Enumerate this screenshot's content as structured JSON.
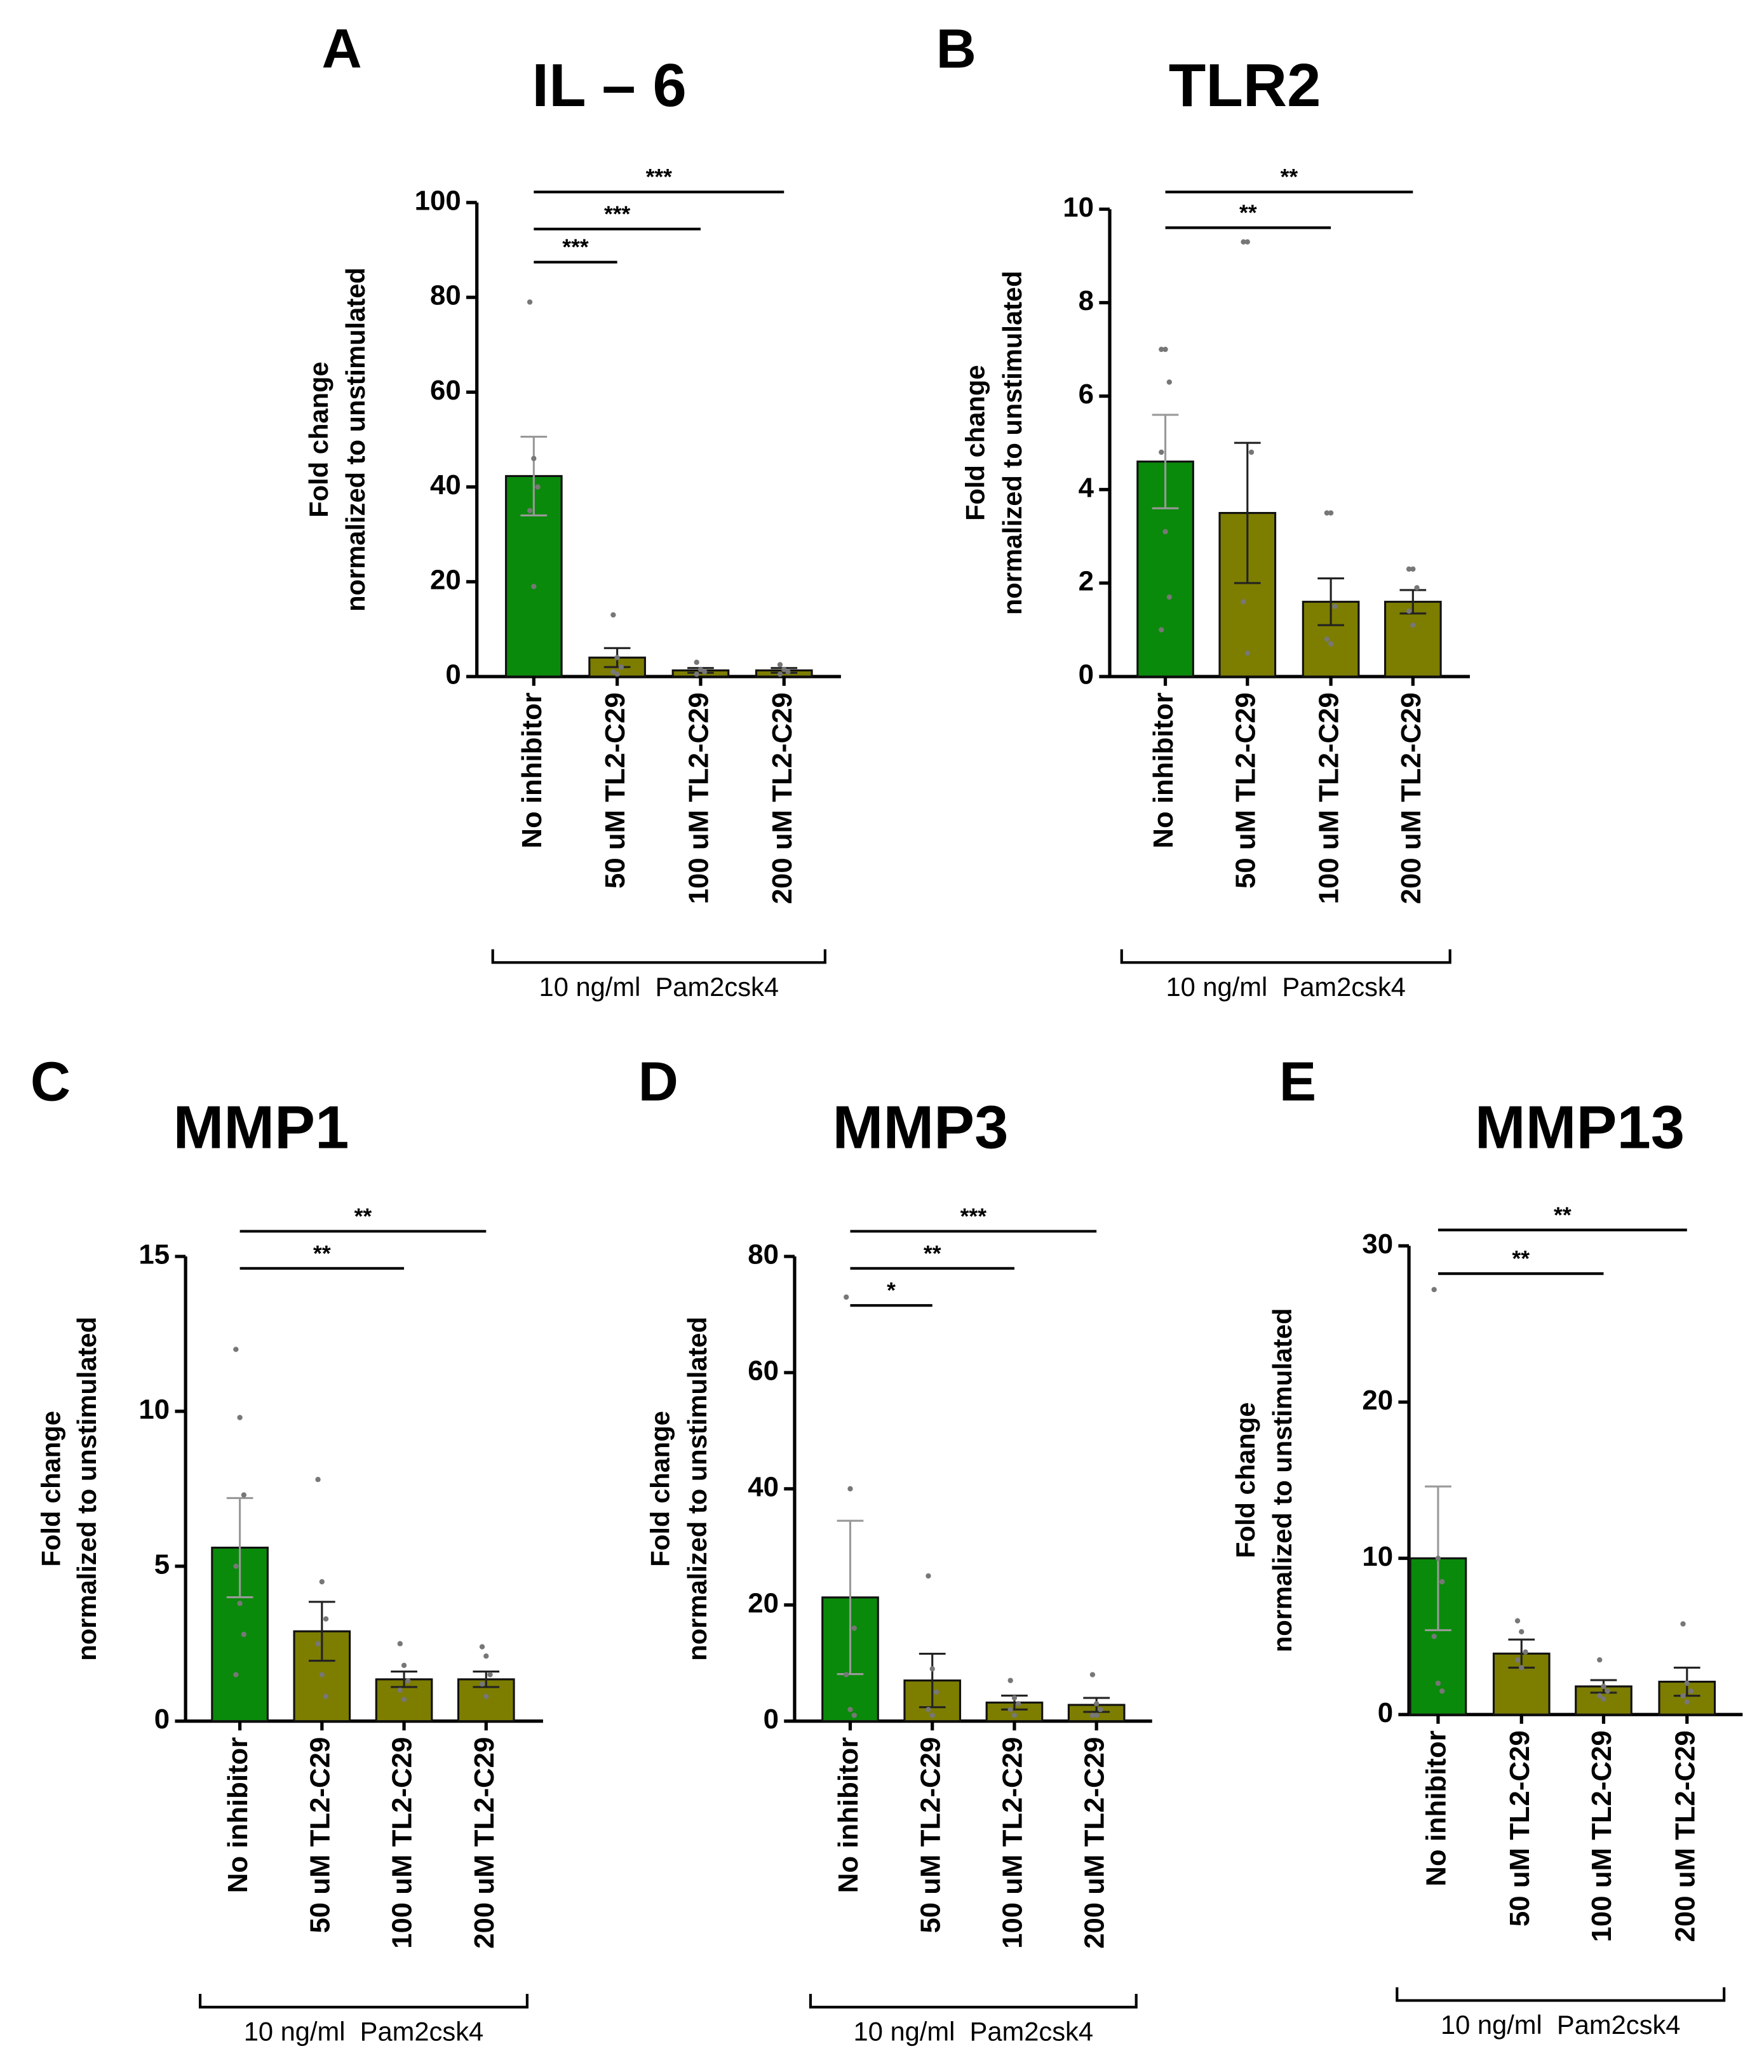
{
  "chart_data": [
    {
      "type": "bar",
      "panel": "A",
      "title": "IL – 6",
      "ylabel": [
        "Fold change",
        "normalized to unstimulated"
      ],
      "categories": [
        "No inhibitor",
        "50 uM TL2-C29",
        "100 uM TL2-C29",
        "200 uM TL2-C29"
      ],
      "colors": [
        "#0a8a0a",
        "#7d7d00",
        "#7d7d00",
        "#7d7d00"
      ],
      "values": [
        42.3,
        4.0,
        1.3,
        1.3
      ],
      "errors": [
        8.3,
        2.0,
        0.5,
        0.5
      ],
      "points": [
        [
          79,
          46,
          40,
          35,
          19
        ],
        [
          13,
          4,
          2,
          1,
          0.5
        ],
        [
          3,
          1.5,
          1,
          0.5
        ],
        [
          2.5,
          1.5,
          1,
          0.5
        ]
      ],
      "ylim": [
        0,
        100
      ],
      "yticks": [
        0,
        20,
        40,
        60,
        80,
        100
      ],
      "significance": [
        {
          "from": 0,
          "to": 1,
          "label": "***"
        },
        {
          "from": 0,
          "to": 2,
          "label": "***"
        },
        {
          "from": 0,
          "to": 3,
          "label": "***"
        }
      ],
      "group_label": "10 ng/ml  Pam2csk4"
    },
    {
      "type": "bar",
      "panel": "B",
      "title": "TLR2",
      "ylabel": [
        "Fold change",
        "normalized to unstimulated"
      ],
      "categories": [
        "No inhibitor",
        "50 uM TL2-C29",
        "100 uM TL2-C29",
        "200 uM TL2-C29"
      ],
      "colors": [
        "#0a8a0a",
        "#7d7d00",
        "#7d7d00",
        "#7d7d00"
      ],
      "values": [
        4.6,
        3.5,
        1.6,
        1.6
      ],
      "errors": [
        1.0,
        1.5,
        0.5,
        0.25
      ],
      "points": [
        [
          7,
          7,
          6.3,
          4.8,
          3.1,
          1.7,
          1.0
        ],
        [
          9.3,
          9.3,
          4.8,
          1.6,
          0.5
        ],
        [
          3.5,
          3.5,
          1.5,
          0.8,
          0.7
        ],
        [
          2.3,
          2.3,
          1.9,
          1.4,
          1.1
        ]
      ],
      "ylim": [
        0,
        10
      ],
      "yticks": [
        0,
        2,
        4,
        6,
        8,
        10
      ],
      "significance": [
        {
          "from": 0,
          "to": 2,
          "label": "**"
        },
        {
          "from": 0,
          "to": 3,
          "label": "**"
        }
      ],
      "group_label": "10 ng/ml  Pam2csk4"
    },
    {
      "type": "bar",
      "panel": "C",
      "title": "MMP1",
      "ylabel": [
        "Fold change",
        "normalized to unstimulated"
      ],
      "categories": [
        "No inhibitor",
        "50 uM TL2-C29",
        "100 uM TL2-C29",
        "200 uM TL2-C29"
      ],
      "colors": [
        "#0a8a0a",
        "#7d7d00",
        "#7d7d00",
        "#7d7d00"
      ],
      "values": [
        5.6,
        2.9,
        1.35,
        1.35
      ],
      "errors": [
        1.6,
        0.95,
        0.25,
        0.25
      ],
      "points": [
        [
          12,
          9.8,
          7.3,
          5,
          3.8,
          2.8,
          1.5
        ],
        [
          7.8,
          4.5,
          3.3,
          2.5,
          1.5,
          0.8
        ],
        [
          2.5,
          1.8,
          1.3,
          1,
          0.7
        ],
        [
          2.4,
          2.1,
          1.5,
          1.2,
          0.8
        ]
      ],
      "ylim": [
        0,
        15
      ],
      "yticks": [
        0,
        5,
        10,
        15
      ],
      "significance": [
        {
          "from": 0,
          "to": 2,
          "label": "**"
        },
        {
          "from": 0,
          "to": 3,
          "label": "**"
        }
      ],
      "group_label": "10 ng/ml  Pam2csk4"
    },
    {
      "type": "bar",
      "panel": "D",
      "title": "MMP3",
      "ylabel": [
        "Fold change",
        "normalized to unstimulated"
      ],
      "categories": [
        "No inhibitor",
        "50 uM TL2-C29",
        "100 uM TL2-C29",
        "200 uM TL2-C29"
      ],
      "colors": [
        "#0a8a0a",
        "#7d7d00",
        "#7d7d00",
        "#7d7d00"
      ],
      "values": [
        21.3,
        7.0,
        3.2,
        2.8
      ],
      "errors": [
        13.2,
        4.6,
        1.2,
        1.2
      ],
      "points": [
        [
          73,
          40,
          16,
          8,
          2,
          1
        ],
        [
          25,
          9,
          5,
          2,
          1
        ],
        [
          7,
          4,
          3,
          2,
          1
        ],
        [
          8,
          3,
          2,
          1,
          1
        ]
      ],
      "ylim": [
        0,
        80
      ],
      "yticks": [
        0,
        20,
        40,
        60,
        80
      ],
      "significance": [
        {
          "from": 0,
          "to": 1,
          "label": "*"
        },
        {
          "from": 0,
          "to": 2,
          "label": "**"
        },
        {
          "from": 0,
          "to": 3,
          "label": "***"
        }
      ],
      "group_label": "10 ng/ml  Pam2csk4"
    },
    {
      "type": "bar",
      "panel": "E",
      "title": "MMP13",
      "ylabel": [
        "Fold change",
        "normalized to unstimulated"
      ],
      "categories": [
        "No inhibitor",
        "50 uM TL2-C29",
        "100 uM TL2-C29",
        "200 uM TL2-C29"
      ],
      "colors": [
        "#0a8a0a",
        "#7d7d00",
        "#7d7d00",
        "#7d7d00"
      ],
      "values": [
        10.0,
        3.9,
        1.8,
        2.1
      ],
      "errors": [
        4.6,
        0.9,
        0.4,
        0.9
      ],
      "points": [
        [
          27.2,
          10,
          8.5,
          5,
          2,
          1.5
        ],
        [
          6,
          5.3,
          4,
          3.5,
          3
        ],
        [
          3.5,
          1.8,
          1.5,
          1.2,
          1
        ],
        [
          5.8,
          2,
          1.5,
          1.2,
          0.8
        ]
      ],
      "ylim": [
        0,
        30
      ],
      "yticks": [
        0,
        10,
        20,
        30
      ],
      "significance": [
        {
          "from": 0,
          "to": 2,
          "label": "**"
        },
        {
          "from": 0,
          "to": 3,
          "label": "**"
        }
      ],
      "group_label": "10 ng/ml  Pam2csk4"
    }
  ]
}
